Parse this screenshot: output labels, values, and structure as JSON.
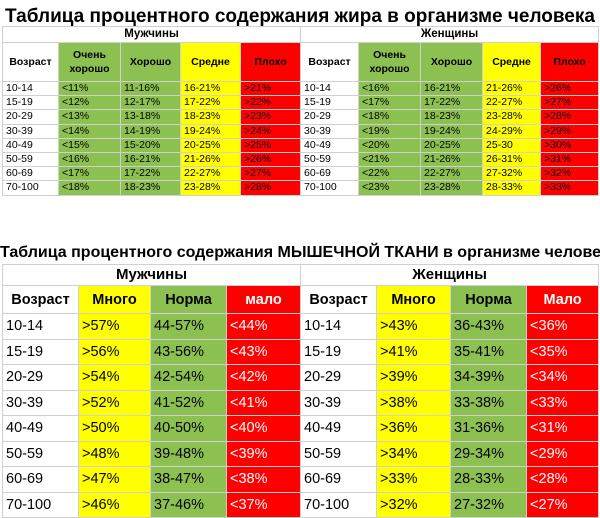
{
  "colors": {
    "green": "#8cc152",
    "yellow": "#ffff00",
    "red": "#ff0000",
    "white": "#ffffff"
  },
  "fat_table": {
    "title": "Таблица процентного содержания жира в организме человека",
    "groups": {
      "men": "Мужчины",
      "women": "Женщины"
    },
    "headers": {
      "age": "Возраст",
      "very_good": "Очень хорошо",
      "good": "Хорошо",
      "average": "Средне",
      "bad": "Плохо"
    },
    "rows": [
      {
        "age": "10-14",
        "men": [
          "<11%",
          "11-16%",
          "16-21%",
          ">21%"
        ],
        "women": [
          "<16%",
          "16-21%",
          "21-26%",
          ">26%"
        ]
      },
      {
        "age": "15-19",
        "men": [
          "<12%",
          "12-17%",
          "17-22%",
          ">22%"
        ],
        "women": [
          "<17%",
          "17-22%",
          "22-27%",
          ">27%"
        ]
      },
      {
        "age": "20-29",
        "men": [
          "<13%",
          "13-18%",
          "18-23%",
          ">23%"
        ],
        "women": [
          "<18%",
          "18-23%",
          "23-28%",
          ">28%"
        ]
      },
      {
        "age": "30-39",
        "men": [
          "<14%",
          "14-19%",
          "19-24%",
          ">24%"
        ],
        "women": [
          "<19%",
          "19-24%",
          "24-29%",
          ">29%"
        ]
      },
      {
        "age": "40-49",
        "men": [
          "<15%",
          "15-20%",
          "20-25%",
          ">25%"
        ],
        "women": [
          "<20%",
          "20-25%",
          "25-30",
          ">30%"
        ]
      },
      {
        "age": "50-59",
        "men": [
          "<16%",
          "16-21%",
          "21-26%",
          ">26%"
        ],
        "women": [
          "<21%",
          "21-26%",
          "26-31%",
          ">31%"
        ]
      },
      {
        "age": "60-69",
        "men": [
          "<17%",
          "17-22%",
          "22-27%",
          ">27%"
        ],
        "women": [
          "<22%",
          "22-27%",
          "27-32%",
          ">32%"
        ]
      },
      {
        "age": "70-100",
        "men": [
          "<18%",
          "18-23%",
          "23-28%",
          ">28%"
        ],
        "women": [
          "<23%",
          "23-28%",
          "28-33%",
          ">33%"
        ]
      }
    ]
  },
  "muscle_table": {
    "title": "Таблица процентного содержания МЫШЕЧНОЙ ТКАНИ в организме человека",
    "groups": {
      "men": "Мужчины",
      "women": "Женщины"
    },
    "headers": {
      "age": "Возраст",
      "men": [
        "Много",
        "Норма",
        "мало"
      ],
      "women": [
        "Много",
        "Норма",
        "Мало"
      ]
    },
    "rows": [
      {
        "age": "10-14",
        "men": [
          ">57%",
          "44-57%",
          "<44%"
        ],
        "women": [
          ">43%",
          "36-43%",
          "<36%"
        ]
      },
      {
        "age": "15-19",
        "men": [
          ">56%",
          "43-56%",
          "<43%"
        ],
        "women": [
          ">41%",
          "35-41%",
          "<35%"
        ]
      },
      {
        "age": "20-29",
        "men": [
          ">54%",
          "42-54%",
          "<42%"
        ],
        "women": [
          ">39%",
          "34-39%",
          "<34%"
        ]
      },
      {
        "age": "30-39",
        "men": [
          ">52%",
          "41-52%",
          "<41%"
        ],
        "women": [
          ">38%",
          "33-38%",
          "<33%"
        ]
      },
      {
        "age": "40-49",
        "men": [
          ">50%",
          "40-50%",
          "<40%"
        ],
        "women": [
          ">36%",
          "31-36%",
          "<31%"
        ]
      },
      {
        "age": "50-59",
        "men": [
          ">48%",
          "39-48%",
          "<39%"
        ],
        "women": [
          ">34%",
          "29-34%",
          "<29%"
        ]
      },
      {
        "age": "60-69",
        "men": [
          ">47%",
          "38-47%",
          "<38%"
        ],
        "women": [
          ">33%",
          "28-33%",
          "<28%"
        ]
      },
      {
        "age": "70-100",
        "men": [
          ">46%",
          "37-46%",
          "<37%"
        ],
        "women": [
          ">32%",
          "27-32%",
          "<27%"
        ]
      }
    ]
  }
}
